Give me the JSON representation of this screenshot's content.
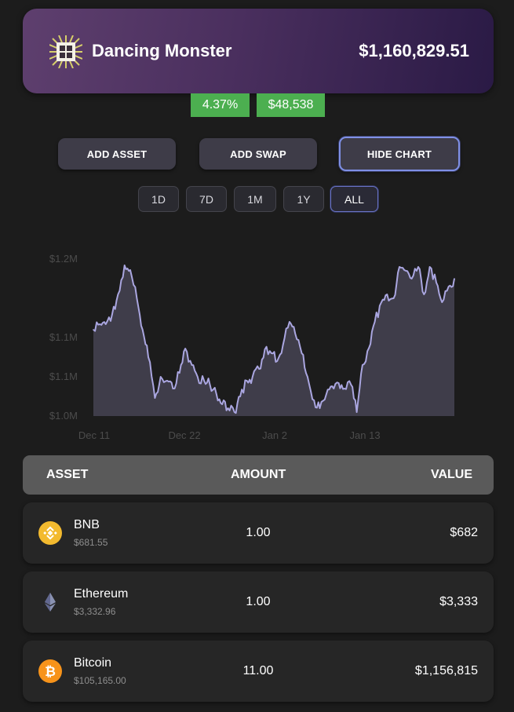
{
  "header": {
    "name": "Dancing Monster",
    "total": "$1,160,829.51",
    "change_pct": "4.37%",
    "change_abs": "$48,538"
  },
  "buttons": {
    "add_asset": "ADD ASSET",
    "add_swap": "ADD SWAP",
    "hide_chart": "HIDE CHART"
  },
  "ranges": [
    {
      "label": "1D",
      "active": false
    },
    {
      "label": "7D",
      "active": false
    },
    {
      "label": "1M",
      "active": false
    },
    {
      "label": "1Y",
      "active": false
    },
    {
      "label": "ALL",
      "active": true
    }
  ],
  "chart_data": {
    "type": "area",
    "ytick_labels": [
      "$1.2M",
      "$1.1M",
      "$1.1M",
      "$1.0M"
    ],
    "ytick_values": [
      1.2,
      1.1,
      1.05,
      1.0
    ],
    "xtick_labels": [
      "Dec 11",
      "Dec 22",
      "Jan 2",
      "Jan 13"
    ],
    "xtick_values": [
      0,
      11,
      22,
      33
    ],
    "ylim": [
      1.0,
      1.2
    ],
    "x": [
      -0.1,
      0.7,
      1.4,
      2.2,
      2.9,
      3.7,
      4.4,
      5.2,
      5.9,
      6.6,
      7.4,
      8.1,
      8.9,
      9.6,
      10.4,
      11.1,
      11.9,
      12.6,
      13.4,
      14.1,
      14.9,
      15.6,
      16.3,
      17.1,
      17.8,
      18.6,
      19.3,
      20.1,
      20.8,
      21.6,
      22.3,
      23.0,
      23.8,
      24.5,
      25.3,
      26.0,
      26.8,
      27.5,
      28.3,
      29.0,
      29.8,
      30.5,
      31.3,
      32.0,
      32.7,
      33.5,
      34.2,
      35.0,
      35.7,
      36.5,
      37.2,
      38.0,
      38.7,
      39.5,
      40.2,
      40.9,
      41.7,
      42.4,
      43.2,
      43.9
    ],
    "values": [
      1.11,
      1.117,
      1.117,
      1.13,
      1.155,
      1.192,
      1.186,
      1.15,
      1.11,
      1.075,
      1.023,
      1.05,
      1.045,
      1.035,
      1.055,
      1.086,
      1.065,
      1.05,
      1.045,
      1.04,
      1.028,
      1.015,
      1.01,
      1.005,
      1.025,
      1.045,
      1.05,
      1.06,
      1.085,
      1.08,
      1.07,
      1.09,
      1.12,
      1.105,
      1.08,
      1.05,
      1.02,
      1.01,
      1.028,
      1.038,
      1.042,
      1.035,
      1.04,
      1.005,
      1.065,
      1.087,
      1.12,
      1.145,
      1.155,
      1.15,
      1.19,
      1.185,
      1.175,
      1.19,
      1.155,
      1.19,
      1.17,
      1.145,
      1.165,
      1.175
    ]
  },
  "table": {
    "headers": {
      "asset": "ASSET",
      "amount": "AMOUNT",
      "value": "VALUE"
    },
    "rows": [
      {
        "name": "BNB",
        "price": "$681.55",
        "amount": "1.00",
        "value": "$682",
        "icon": "bnb-icon",
        "color": "#f3ba2f"
      },
      {
        "name": "Ethereum",
        "price": "$3,332.96",
        "amount": "1.00",
        "value": "$3,333",
        "icon": "ethereum-icon",
        "color": "#62688f"
      },
      {
        "name": "Bitcoin",
        "price": "$105,165.00",
        "amount": "11.00",
        "value": "$1,156,815",
        "icon": "bitcoin-icon",
        "color": "#f7931a"
      }
    ]
  }
}
